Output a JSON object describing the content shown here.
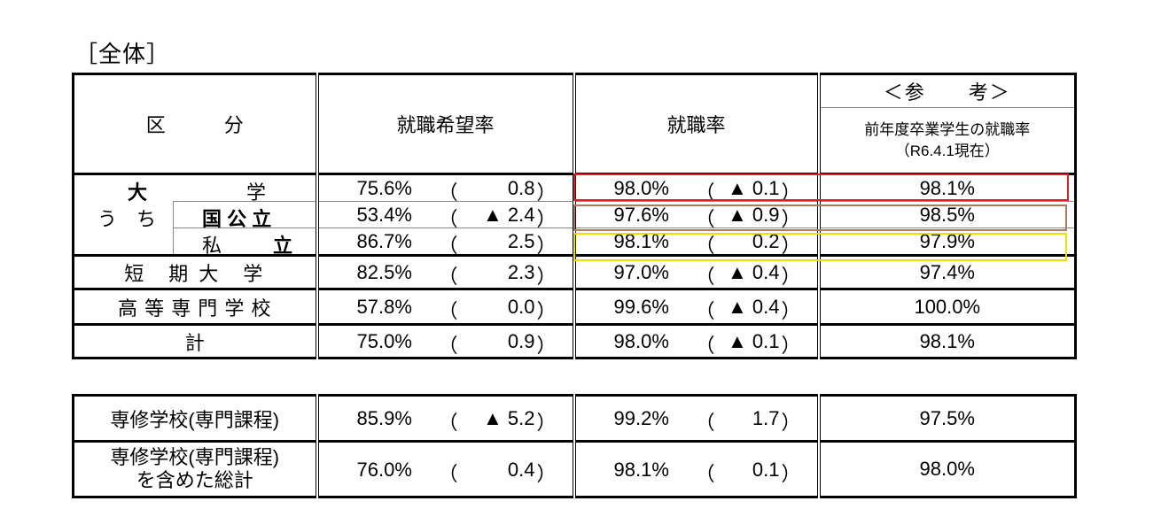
{
  "title": "［全体］",
  "headers": {
    "category": "区　　　分",
    "hope_rate": "就職希望率",
    "employment_rate": "就職率",
    "reference": "＜参　　考＞",
    "reference_sub1": "前年度卒業学生の就職率",
    "reference_sub2": "（R6.4.1現在）"
  },
  "rows": [
    {
      "label_a": "大",
      "label_b": "学",
      "hope": "75.6%",
      "hope_change": "0.8",
      "emp": "98.0%",
      "emp_change": "▲ 0.1",
      "ref": "98.1%"
    },
    {
      "label_prefix": "う　ち",
      "label_a": "国 公 立",
      "hope": "53.4%",
      "hope_change": "▲ 2.4",
      "emp": "97.6%",
      "emp_change": "▲ 0.9",
      "ref": "98.5%"
    },
    {
      "label_a": "私",
      "label_b": "立",
      "hope": "86.7%",
      "hope_change": "2.5",
      "emp": "98.1%",
      "emp_change": "0.2",
      "ref": "97.9%"
    },
    {
      "label": "短　期 大　学",
      "hope": "82.5%",
      "hope_change": "2.3",
      "emp": "97.0%",
      "emp_change": "▲ 0.4",
      "ref": "97.4%"
    },
    {
      "label": "高 等 専 門 学 校",
      "hope": "57.8%",
      "hope_change": "0.0",
      "emp": "99.6%",
      "emp_change": "▲ 0.4",
      "ref": "100.0%"
    },
    {
      "label": "計",
      "hope": "75.0%",
      "hope_change": "0.9",
      "emp": "98.0%",
      "emp_change": "▲ 0.1",
      "ref": "98.1%"
    }
  ],
  "rows2": [
    {
      "label": "専修学校(専門課程)",
      "hope": "85.9%",
      "hope_change": "▲ 5.2",
      "emp": "99.2%",
      "emp_change": "1.7",
      "ref": "97.5%"
    },
    {
      "label1": "専修学校(専門課程)",
      "label2": "を含めた総計",
      "hope": "76.0%",
      "hope_change": "0.4",
      "emp": "98.1%",
      "emp_change": "0.1",
      "ref": "98.0%"
    }
  ],
  "paren_open": "（",
  "paren_close": "）",
  "highlight_colors": {
    "university": "#e02020",
    "national": "#b07a60",
    "private": "#f0e000"
  }
}
